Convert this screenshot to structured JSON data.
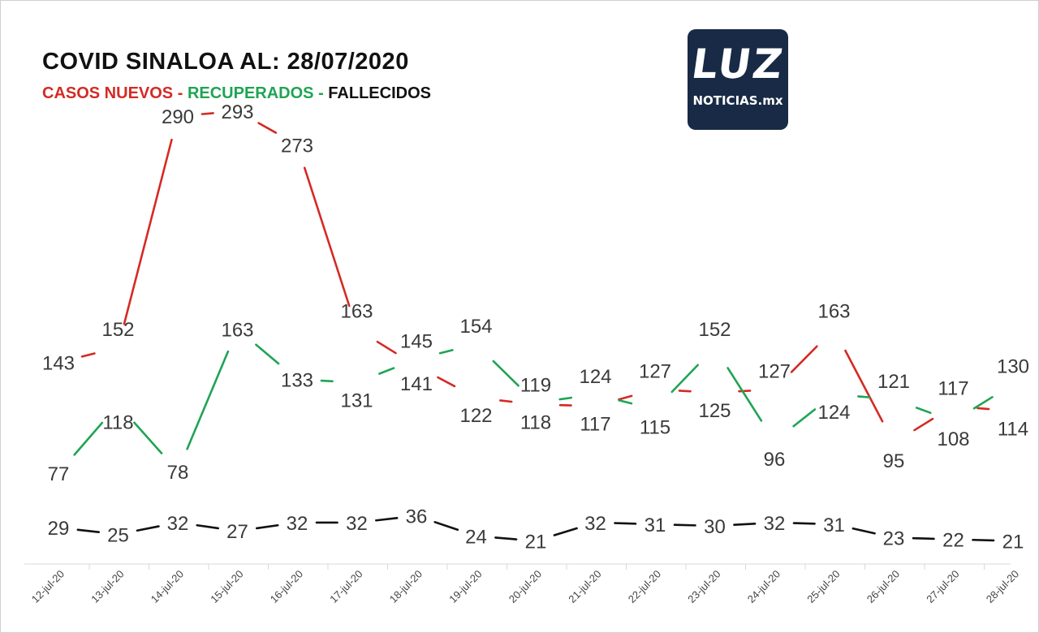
{
  "title": "COVID SINALOA AL: 28/07/2020",
  "legend": {
    "casos": "CASOS NUEVOS",
    "sep1": " - ",
    "recuperados": "RECUPERADOS",
    "sep2": " - ",
    "fallecidos": "FALLECIDOS"
  },
  "logo": {
    "mark": "LUZ",
    "text": "NOTICIAS.mx"
  },
  "colors": {
    "casos": "#d42a24",
    "recuperados": "#1fa454",
    "fallecidos": "#111111",
    "logo_bg": "#182a45"
  },
  "chart_data": {
    "type": "line",
    "categories": [
      "12-jul-20",
      "13-jul-20",
      "14-jul-20",
      "15-jul-20",
      "16-jul-20",
      "17-jul-20",
      "18-jul-20",
      "19-jul-20",
      "20-jul-20",
      "21-jul-20",
      "22-jul-20",
      "23-jul-20",
      "24-jul-20",
      "25-jul-20",
      "26-jul-20",
      "27-jul-20",
      "28-jul-20"
    ],
    "series": [
      {
        "name": "CASOS NUEVOS",
        "color": "#d42a24",
        "values": [
          143,
          152,
          290,
          293,
          273,
          163,
          141,
          122,
          118,
          117,
          127,
          125,
          127,
          163,
          95,
          117,
          114
        ]
      },
      {
        "name": "RECUPERADOS",
        "color": "#1fa454",
        "values": [
          77,
          118,
          78,
          163,
          133,
          131,
          145,
          154,
          119,
          124,
          115,
          152,
          96,
          124,
          121,
          108,
          130
        ]
      },
      {
        "name": "FALLECIDOS",
        "color": "#111111",
        "values": [
          29,
          25,
          32,
          27,
          32,
          32,
          36,
          24,
          21,
          32,
          31,
          30,
          32,
          31,
          23,
          22,
          21
        ]
      }
    ],
    "grid": false,
    "legend_position": "top-left"
  }
}
